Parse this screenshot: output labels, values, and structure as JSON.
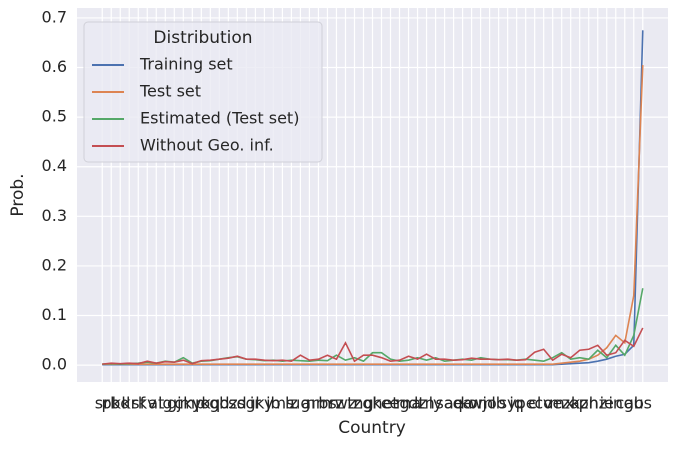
{
  "chart_data": {
    "type": "line",
    "x_label": "Country",
    "y_label": "Prob.",
    "legend_title": "Distribution",
    "legend_position": "upper-left",
    "grid": true,
    "categories": [
      "sr",
      "pk",
      "bd",
      "kr",
      "sf",
      "kv",
      "at",
      "ig",
      "gj",
      "ck",
      "mp",
      "yk",
      "oq",
      "gd",
      "bz",
      "sd",
      "sg",
      "ir",
      "ky",
      "jb",
      "ms",
      "lz",
      "ug",
      "ar",
      "nm",
      "bs",
      "rz",
      "wz",
      "tz",
      "ng",
      "gh",
      "ke",
      "et",
      "eg",
      "ma",
      "dz",
      "tn",
      "ly",
      "sa",
      "ae",
      "qa",
      "kw",
      "om",
      "jo",
      "lb",
      "sy",
      "iq",
      "pe",
      "cl",
      "co",
      "ve",
      "mx",
      "za",
      "kz",
      "ph",
      "nz",
      "ie",
      "in",
      "ca",
      "gb",
      "us"
    ],
    "ylim": [
      -0.034,
      0.72
    ],
    "yticks": [
      {
        "value": 0,
        "label": "0.0"
      },
      0.1,
      0.2,
      0.3,
      0.4,
      0.5,
      0.6,
      0.7
    ],
    "series": [
      {
        "name": "Training set",
        "color": "#4c72b0",
        "values": [
          0.001,
          0.001,
          0.001,
          0.001,
          0.001,
          0.001,
          0.001,
          0.001,
          0.001,
          0.001,
          0.001,
          0.001,
          0.001,
          0.001,
          0.001,
          0.001,
          0.001,
          0.001,
          0.001,
          0.001,
          0.001,
          0.001,
          0.001,
          0.001,
          0.001,
          0.001,
          0.001,
          0.001,
          0.001,
          0.001,
          0.001,
          0.001,
          0.001,
          0.001,
          0.001,
          0.001,
          0.001,
          0.001,
          0.001,
          0.001,
          0.001,
          0.001,
          0.001,
          0.001,
          0.001,
          0.001,
          0.001,
          0.001,
          0.001,
          0.001,
          0.001,
          0.002,
          0.003,
          0.004,
          0.005,
          0.008,
          0.012,
          0.018,
          0.022,
          0.04,
          0.675
        ]
      },
      {
        "name": "Test set",
        "color": "#dd8452",
        "values": [
          0.002,
          0.002,
          0.002,
          0.002,
          0.002,
          0.002,
          0.002,
          0.002,
          0.002,
          0.002,
          0.002,
          0.002,
          0.002,
          0.002,
          0.002,
          0.002,
          0.002,
          0.002,
          0.002,
          0.002,
          0.002,
          0.002,
          0.002,
          0.002,
          0.002,
          0.002,
          0.002,
          0.002,
          0.002,
          0.002,
          0.002,
          0.002,
          0.002,
          0.002,
          0.002,
          0.002,
          0.002,
          0.002,
          0.002,
          0.002,
          0.002,
          0.002,
          0.002,
          0.002,
          0.002,
          0.002,
          0.002,
          0.002,
          0.002,
          0.002,
          0.002,
          0.004,
          0.006,
          0.008,
          0.012,
          0.02,
          0.035,
          0.06,
          0.045,
          0.14,
          0.605
        ]
      },
      {
        "name": "Estimated (Test set)",
        "color": "#55a868",
        "values": [
          0.002,
          0.003,
          0.002,
          0.003,
          0.004,
          0.006,
          0.004,
          0.008,
          0.006,
          0.015,
          0.004,
          0.008,
          0.009,
          0.012,
          0.015,
          0.017,
          0.012,
          0.011,
          0.009,
          0.01,
          0.008,
          0.01,
          0.009,
          0.008,
          0.01,
          0.009,
          0.02,
          0.01,
          0.015,
          0.008,
          0.025,
          0.025,
          0.012,
          0.008,
          0.01,
          0.015,
          0.01,
          0.015,
          0.008,
          0.01,
          0.012,
          0.01,
          0.015,
          0.012,
          0.011,
          0.011,
          0.01,
          0.012,
          0.01,
          0.008,
          0.015,
          0.025,
          0.012,
          0.015,
          0.012,
          0.03,
          0.015,
          0.04,
          0.02,
          0.06,
          0.155
        ]
      },
      {
        "name": "Without Geo. inf.",
        "color": "#c44e52",
        "values": [
          0.002,
          0.004,
          0.003,
          0.004,
          0.003,
          0.008,
          0.004,
          0.007,
          0.006,
          0.01,
          0.003,
          0.009,
          0.01,
          0.012,
          0.014,
          0.018,
          0.012,
          0.012,
          0.01,
          0.009,
          0.01,
          0.008,
          0.02,
          0.01,
          0.012,
          0.02,
          0.012,
          0.045,
          0.008,
          0.02,
          0.02,
          0.015,
          0.008,
          0.01,
          0.018,
          0.012,
          0.022,
          0.012,
          0.012,
          0.01,
          0.011,
          0.014,
          0.012,
          0.012,
          0.011,
          0.012,
          0.01,
          0.011,
          0.026,
          0.032,
          0.01,
          0.022,
          0.015,
          0.03,
          0.032,
          0.04,
          0.02,
          0.025,
          0.05,
          0.038,
          0.075
        ]
      }
    ]
  }
}
